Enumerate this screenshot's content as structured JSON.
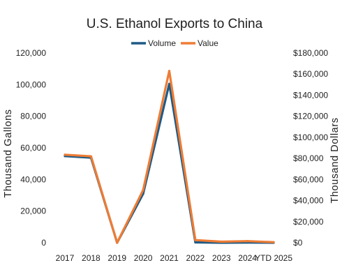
{
  "chart_data": {
    "type": "line",
    "title": "U.S. Ethanol Exports to China",
    "categories": [
      "2017",
      "2018",
      "2019",
      "2020",
      "2021",
      "2022",
      "2023",
      "2024",
      "YTD 2025"
    ],
    "series": [
      {
        "name": "Volume",
        "axis": "left",
        "color": "#1f5b85",
        "values": [
          54800,
          53800,
          0,
          31000,
          100500,
          200,
          0,
          100,
          0
        ]
      },
      {
        "name": "Value",
        "axis": "right",
        "color": "#ee7c35",
        "values": [
          83500,
          82000,
          0,
          50000,
          163000,
          2500,
          1000,
          1500,
          500
        ]
      }
    ],
    "ylabel": "Thousand Gallons",
    "y2label": "Thousand Dollars",
    "ylim": [
      0,
      120000
    ],
    "y2lim": [
      0,
      180000
    ],
    "yticks": [
      "0",
      "20,000",
      "40,000",
      "60,000",
      "80,000",
      "100,000",
      "120,000"
    ],
    "y2ticks": [
      "$0",
      "$20,000",
      "$40,000",
      "$60,000",
      "$80,000",
      "$100,000",
      "$120,000",
      "$140,000",
      "$160,000",
      "$180,000"
    ],
    "legend_position": "top",
    "grid": false
  }
}
